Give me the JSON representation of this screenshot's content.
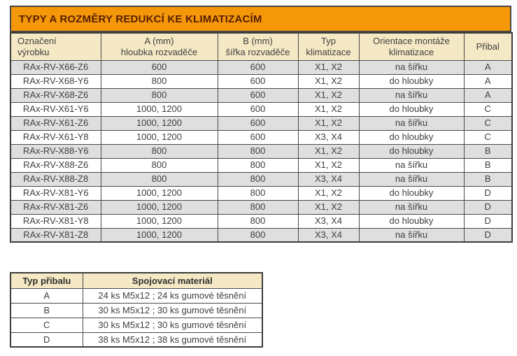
{
  "title": "TYPY A ROZMĚRY REDUKCÍ KE KLIMATIZACÍM",
  "colors": {
    "accent_orange": "#F49709",
    "header_tan": "#F5E8C4",
    "row_alt_gray": "#DFDFDF",
    "border_dark": "#3C3C3C",
    "title_text": "#571E02",
    "cell_text": "#3F3F3F"
  },
  "main_table": {
    "columns": [
      "Označení\nvýrobku",
      "A (mm)\nhloubka rozvaděče",
      "B (mm)\nšířka rozvaděče",
      "Typ\nklimatizace",
      "Orientace montáže\nklimatizace",
      "Přibal"
    ],
    "rows": [
      [
        "RAx-RV-X66-Z6",
        "600",
        "600",
        "X1, X2",
        "na šířku",
        "A"
      ],
      [
        "RAx-RV-X68-Y6",
        "800",
        "600",
        "X1, X2",
        "do hloubky",
        "A"
      ],
      [
        "RAx-RV-X68-Z6",
        "800",
        "600",
        "X1, X2",
        "na šířku",
        "A"
      ],
      [
        "RAx-RV-X61-Y6",
        "1000, 1200",
        "600",
        "X1, X2",
        "do hloubky",
        "C"
      ],
      [
        "RAx-RV-X61-Z6",
        "1000, 1200",
        "600",
        "X1, X2",
        "na šířku",
        "C"
      ],
      [
        "RAx-RV-X61-Y8",
        "1000, 1200",
        "600",
        "X3, X4",
        "do hloubky",
        "C"
      ],
      [
        "RAx-RV-X88-Y6",
        "800",
        "800",
        "X1, X2",
        "do hloubky",
        "B"
      ],
      [
        "RAx-RV-X88-Z6",
        "800",
        "800",
        "X1, X2",
        "na šířku",
        "B"
      ],
      [
        "RAx-RV-X88-Z8",
        "800",
        "800",
        "X3, X4",
        "na šířku",
        "B"
      ],
      [
        "RAx-RV-X81-Y6",
        "1000, 1200",
        "800",
        "X1, X2",
        "do hloubky",
        "D"
      ],
      [
        "RAx-RV-X81-Z6",
        "1000, 1200",
        "800",
        "X1, X2",
        "na šířku",
        "D"
      ],
      [
        "RAx-RV-X81-Y8",
        "1000, 1200",
        "800",
        "X3, X4",
        "do hloubky",
        "D"
      ],
      [
        "RAx-RV-X81-Z8",
        "1000, 1200",
        "800",
        "X3, X4",
        "na šířku",
        "D"
      ]
    ]
  },
  "accessory_table": {
    "columns": [
      "Typ přibalu",
      "Spojovací materiál"
    ],
    "rows": [
      [
        "A",
        "24 ks M5x12 ; 24 ks gumové těsnění"
      ],
      [
        "B",
        "30 ks M5x12 ; 30 ks gumové těsnění"
      ],
      [
        "C",
        "30 ks M5x12 ; 30 ks gumové těsnění"
      ],
      [
        "D",
        "38 ks M5x12 ; 38 ks gumové těsnění"
      ]
    ]
  }
}
